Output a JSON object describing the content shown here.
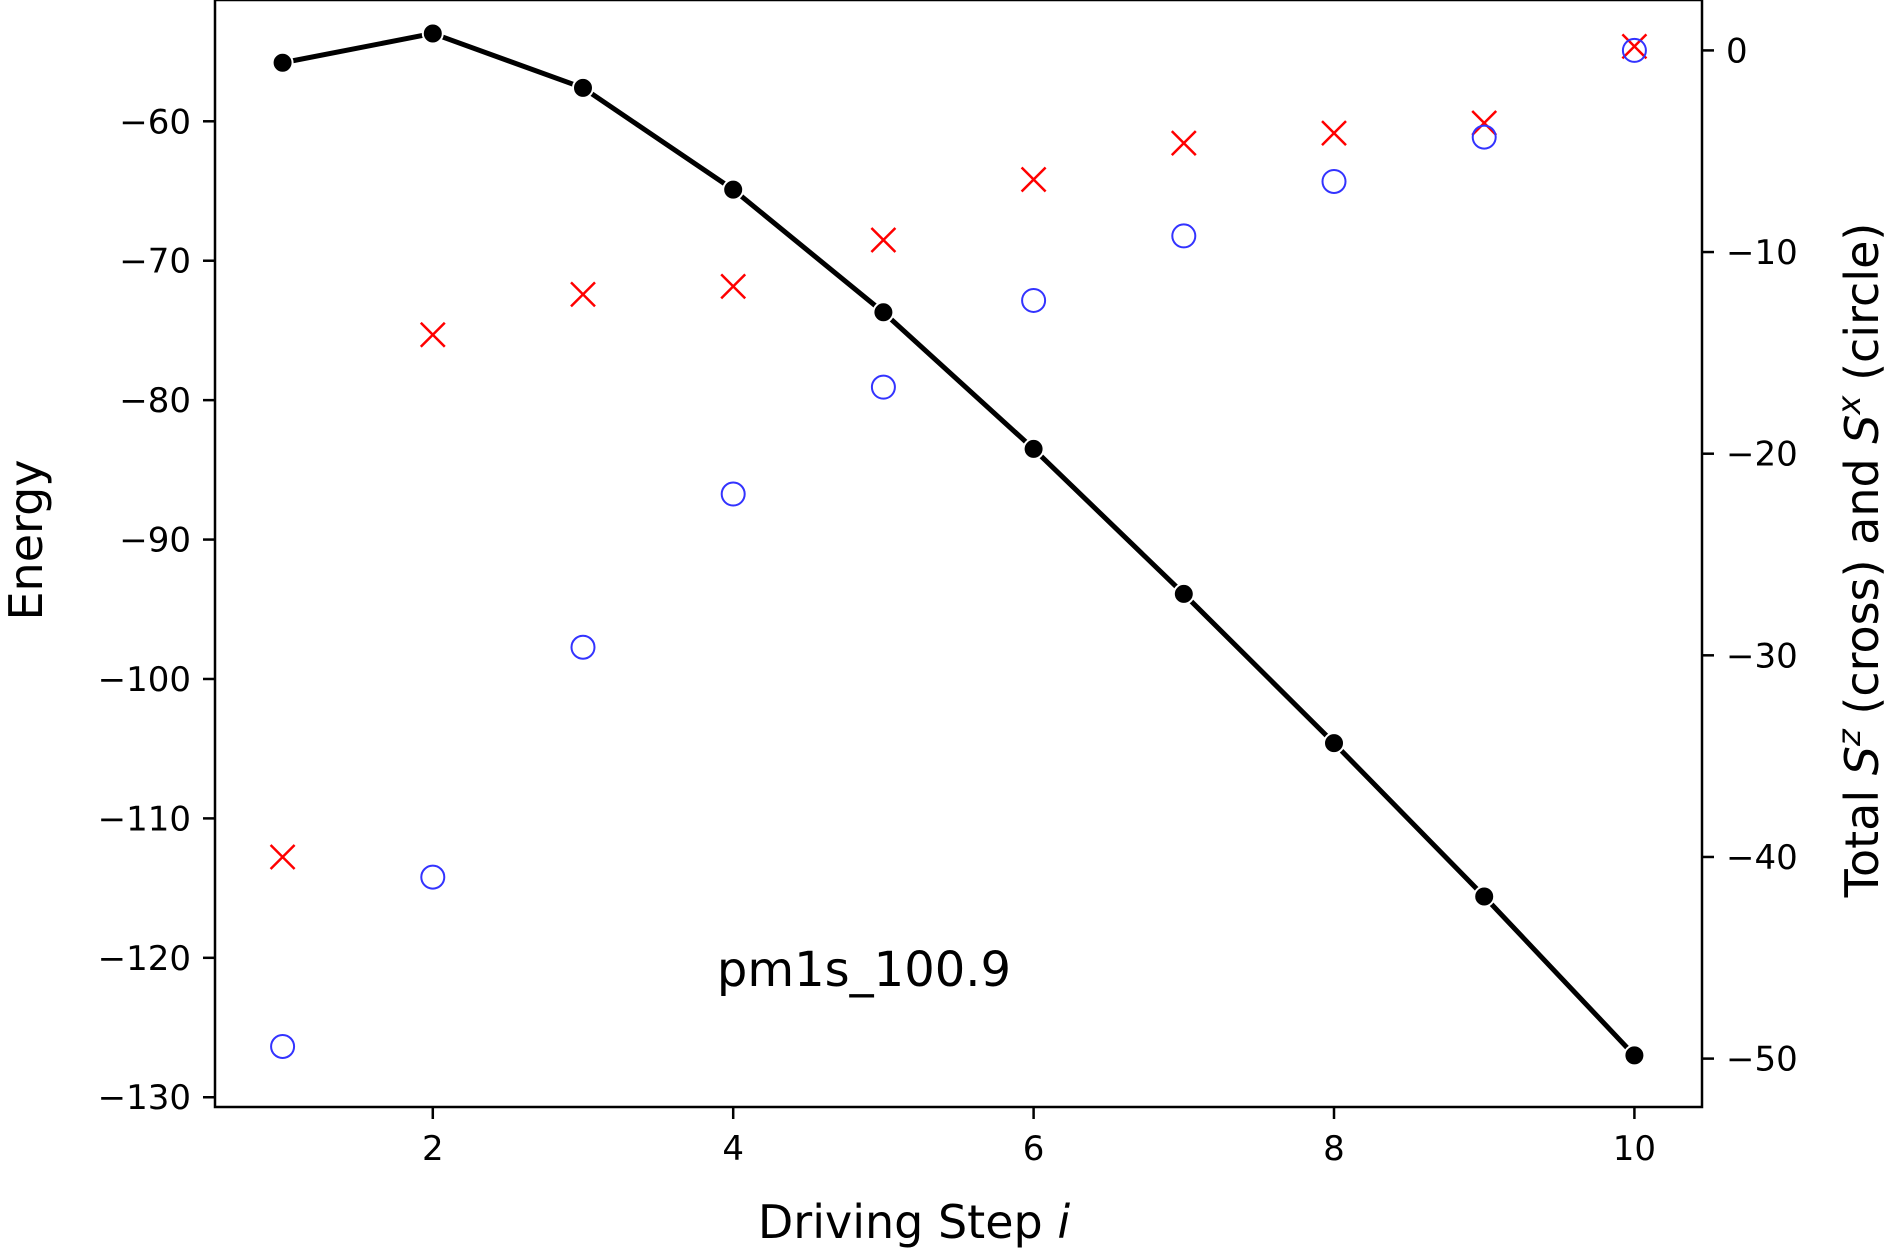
{
  "chart_data": {
    "type": "line",
    "annotation": "pm1s_100.9",
    "xlabel": {
      "text": "Driving Step ",
      "italic": "i"
    },
    "ylabel": "Energy",
    "y2label": {
      "prefix": "Total ",
      "sz": "S",
      "sz_sup": "z",
      "middle": " (cross) and ",
      "sx": "S",
      "sx_sup": "x",
      "suffix": " (circle)"
    },
    "x": [
      1,
      2,
      3,
      4,
      5,
      6,
      7,
      8,
      9,
      10
    ],
    "xlim": [
      0.55,
      10.45
    ],
    "ylim": [
      -130.7,
      -51.3
    ],
    "y2lim": [
      -52.4,
      2.5
    ],
    "xticks": [
      2,
      4,
      6,
      8,
      10
    ],
    "xtick_labels": [
      "2",
      "4",
      "6",
      "8",
      "10"
    ],
    "yticks": [
      -60,
      -70,
      -80,
      -90,
      -100,
      -110,
      -120,
      -130
    ],
    "ytick_labels": [
      "−60",
      "−70",
      "−80",
      "−90",
      "−100",
      "−110",
      "−120",
      "−130"
    ],
    "y2ticks": [
      0,
      -10,
      -20,
      -30,
      -40,
      -50
    ],
    "y2tick_labels": [
      "0",
      "−10",
      "−20",
      "−30",
      "−40",
      "−50"
    ],
    "grid": false,
    "series": [
      {
        "axis": "left",
        "marker": "filled-circle",
        "line": true,
        "color": "#000000",
        "values": [
          -55.8,
          -53.7,
          -57.6,
          -64.9,
          -73.7,
          -83.5,
          -93.9,
          -104.6,
          -115.6,
          -127.0
        ]
      },
      {
        "axis": "right",
        "marker": "cross",
        "line": false,
        "color": "#ff0000",
        "values": [
          -40.0,
          -14.1,
          -12.1,
          -11.7,
          -9.4,
          -6.4,
          -4.6,
          -4.1,
          -3.6,
          0.2
        ]
      },
      {
        "axis": "right",
        "marker": "open-circle",
        "line": false,
        "color": "#3333ff",
        "values": [
          -49.4,
          -41.0,
          -29.6,
          -22.0,
          -16.7,
          -12.4,
          -9.2,
          -6.5,
          -4.3,
          0.0
        ]
      }
    ]
  }
}
